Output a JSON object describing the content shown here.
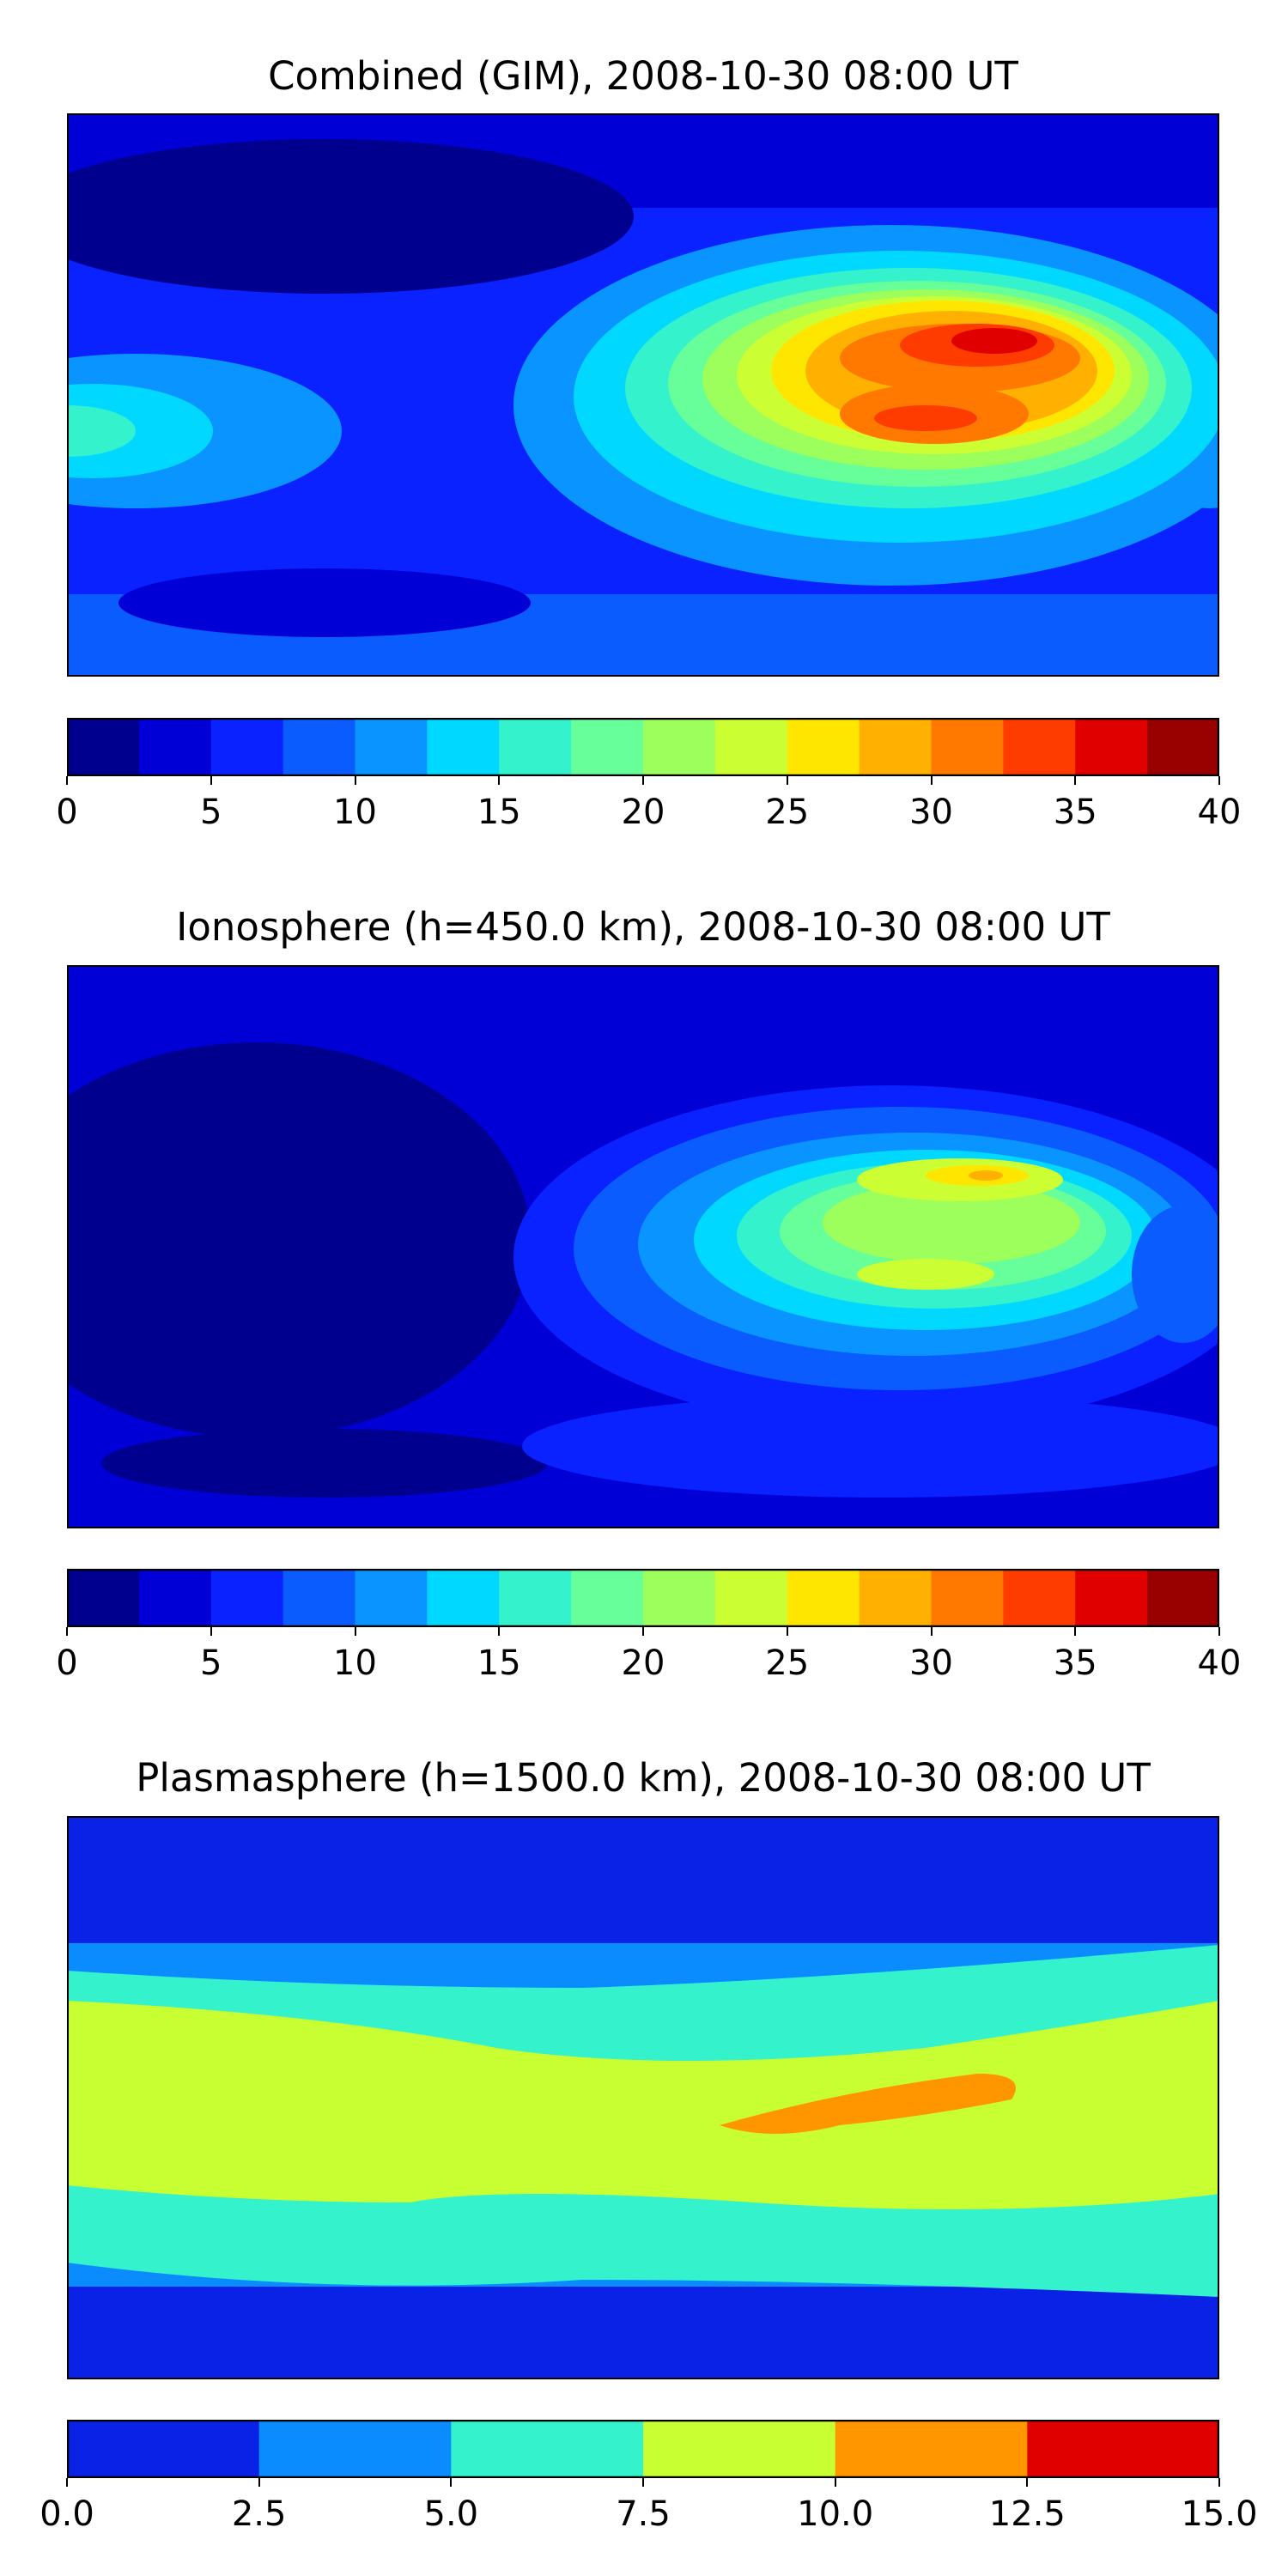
{
  "panels": [
    {
      "title": "Combined (GIM), 2008-10-30 08:00 UT",
      "colorbar": {
        "colors": [
          "#00008f",
          "#0000d6",
          "#0a22ff",
          "#0a5cff",
          "#0a94ff",
          "#00d8ff",
          "#33f2cc",
          "#66ff99",
          "#9cff5c",
          "#ccff33",
          "#ffe600",
          "#ffb000",
          "#ff7800",
          "#ff3c00",
          "#e00000",
          "#990000"
        ],
        "ticks": [
          "0",
          "5",
          "10",
          "15",
          "20",
          "25",
          "30",
          "35",
          "40"
        ]
      },
      "field": "combined"
    },
    {
      "title": "Ionosphere  (h=450.0 km), 2008-10-30 08:00 UT",
      "colorbar": {
        "colors": [
          "#00008f",
          "#0000d6",
          "#0a22ff",
          "#0a5cff",
          "#0a94ff",
          "#00d8ff",
          "#33f2cc",
          "#66ff99",
          "#9cff5c",
          "#ccff33",
          "#ffe600",
          "#ffb000",
          "#ff7800",
          "#ff3c00",
          "#e00000",
          "#990000"
        ],
        "ticks": [
          "0",
          "5",
          "10",
          "15",
          "20",
          "25",
          "30",
          "35",
          "40"
        ]
      },
      "field": "ionosphere"
    },
    {
      "title": "Plasmasphere (h=1500.0 km), 2008-10-30 08:00 UT",
      "colorbar": {
        "colors": [
          "#0a22e6",
          "#0a8cff",
          "#33f2cc",
          "#c8ff33",
          "#ff9600",
          "#e00000"
        ],
        "ticks": [
          "0.0",
          "2.5",
          "5.0",
          "7.5",
          "10.0",
          "12.5",
          "15.0"
        ]
      },
      "field": "plasmasphere"
    }
  ]
}
